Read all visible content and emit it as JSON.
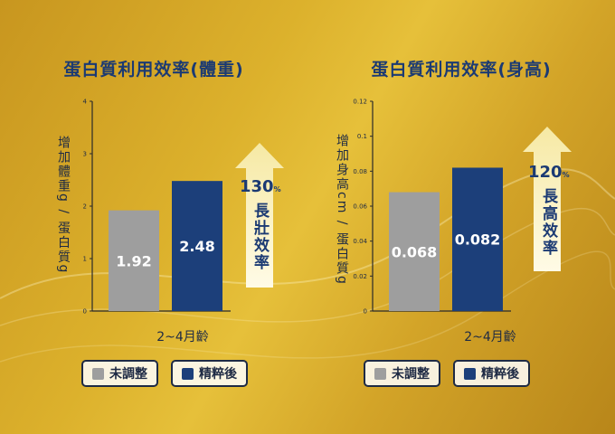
{
  "colors": {
    "untuned": "#9e9e9e",
    "refined": "#1c3f7a",
    "title": "#1b3a73",
    "arrow": "#fff6c8"
  },
  "x_axis_label": "2~4月齡",
  "legend": {
    "untuned": "未調整",
    "refined": "精粹後"
  },
  "chart_data": [
    {
      "type": "bar",
      "title": "蛋白質利用效率(體重)",
      "ylabel": "增加體重g / 蛋白質g",
      "xlabel": "2~4月齡",
      "ylim": [
        0,
        4
      ],
      "yticks": [
        "0",
        "1",
        "2",
        "3",
        "4"
      ],
      "series": [
        {
          "name": "未調整",
          "value": 1.92,
          "label": "1.92"
        },
        {
          "name": "精粹後",
          "value": 2.48,
          "label": "2.48"
        }
      ],
      "callout_percent": "130",
      "callout_percent_unit": "%",
      "callout_text": "長壯效率"
    },
    {
      "type": "bar",
      "title": "蛋白質利用效率(身高)",
      "ylabel": "增加身高cm / 蛋白質g",
      "xlabel": "2~4月齡",
      "ylim": [
        0,
        0.12
      ],
      "yticks": [
        "0",
        "0.02",
        "0.04",
        "0.06",
        "0.08",
        "0.1",
        "0.12"
      ],
      "series": [
        {
          "name": "未調整",
          "value": 0.068,
          "label": "0.068"
        },
        {
          "name": "精粹後",
          "value": 0.082,
          "label": "0.082"
        }
      ],
      "callout_percent": "120",
      "callout_percent_unit": "%",
      "callout_text": "長高效率"
    }
  ]
}
